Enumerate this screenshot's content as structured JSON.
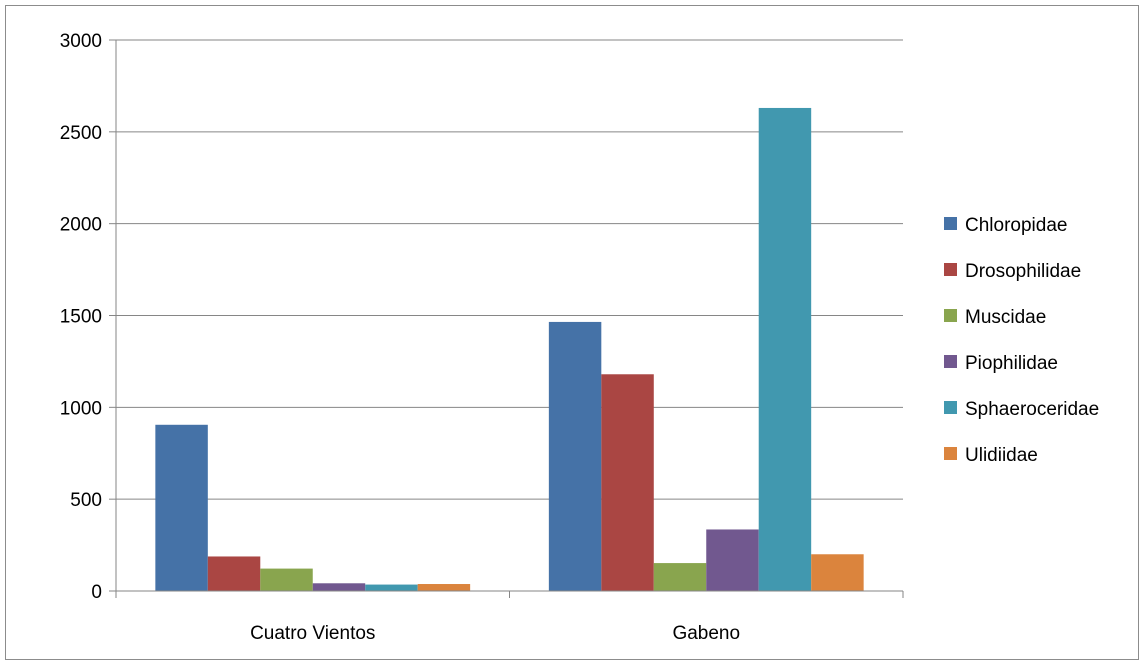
{
  "chart_data": {
    "type": "bar",
    "categories": [
      "Cuatro Vientos",
      "Gabeno"
    ],
    "series": [
      {
        "name": "Chloropidae",
        "values": [
          905,
          1465
        ],
        "color": "#4572a7"
      },
      {
        "name": "Drosophilidae",
        "values": [
          188,
          1180
        ],
        "color": "#aa4643"
      },
      {
        "name": "Muscidae",
        "values": [
          122,
          152
        ],
        "color": "#89a54e"
      },
      {
        "name": "Piophilidae",
        "values": [
          42,
          335
        ],
        "color": "#71588f"
      },
      {
        "name": "Sphaeroceridae",
        "values": [
          35,
          2630
        ],
        "color": "#4198af"
      },
      {
        "name": "Ulidiidae",
        "values": [
          38,
          200
        ],
        "color": "#db843d"
      }
    ],
    "ylim": [
      0,
      3000
    ],
    "yticks": [
      0,
      500,
      1000,
      1500,
      2000,
      2500,
      3000
    ],
    "grid": true,
    "legend": "right"
  }
}
